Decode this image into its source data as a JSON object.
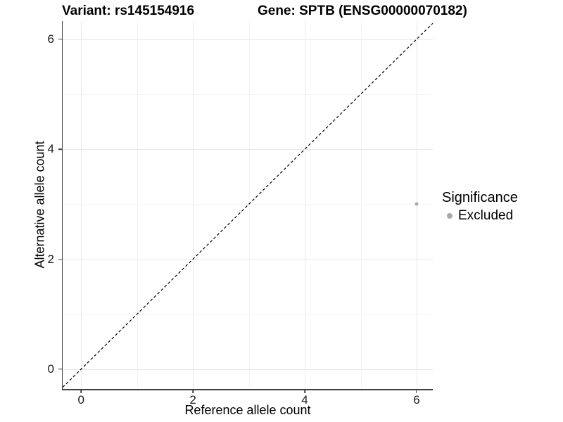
{
  "legend": {
    "title": "Significance",
    "items": [
      {
        "label": "Excluded",
        "marker_color": "#a9a9a9"
      }
    ]
  },
  "chart_data": {
    "type": "scatter",
    "title_left": "Variant: rs145154916",
    "title_right": "Gene: SPTB (ENSG00000070182)",
    "xlabel": "Reference allele count",
    "ylabel": "Alternative allele count",
    "xlim": [
      -0.33,
      6.29
    ],
    "ylim": [
      -0.36,
      6.33
    ],
    "xticks": [
      0,
      2,
      4,
      6
    ],
    "yticks": [
      0,
      2,
      4,
      6
    ],
    "xticks_minor": [
      1,
      3,
      5
    ],
    "yticks_minor": [
      1,
      3,
      5
    ],
    "grid": "major and minor gridlines, very light gray on white background",
    "legend_position": "right-middle",
    "series": [
      {
        "name": "Excluded",
        "marker_color": "#a9a9a9",
        "points": [
          {
            "x": 6,
            "y": 3
          }
        ]
      }
    ],
    "reference_line": {
      "type": "identity y=x",
      "style": "dashed",
      "color": "#000000"
    },
    "colors": {
      "grid_major": "#e8e8e8",
      "grid_minor": "#f4f4f4",
      "axis_line": "#404040",
      "tick_label": "#1a1a1a"
    }
  }
}
